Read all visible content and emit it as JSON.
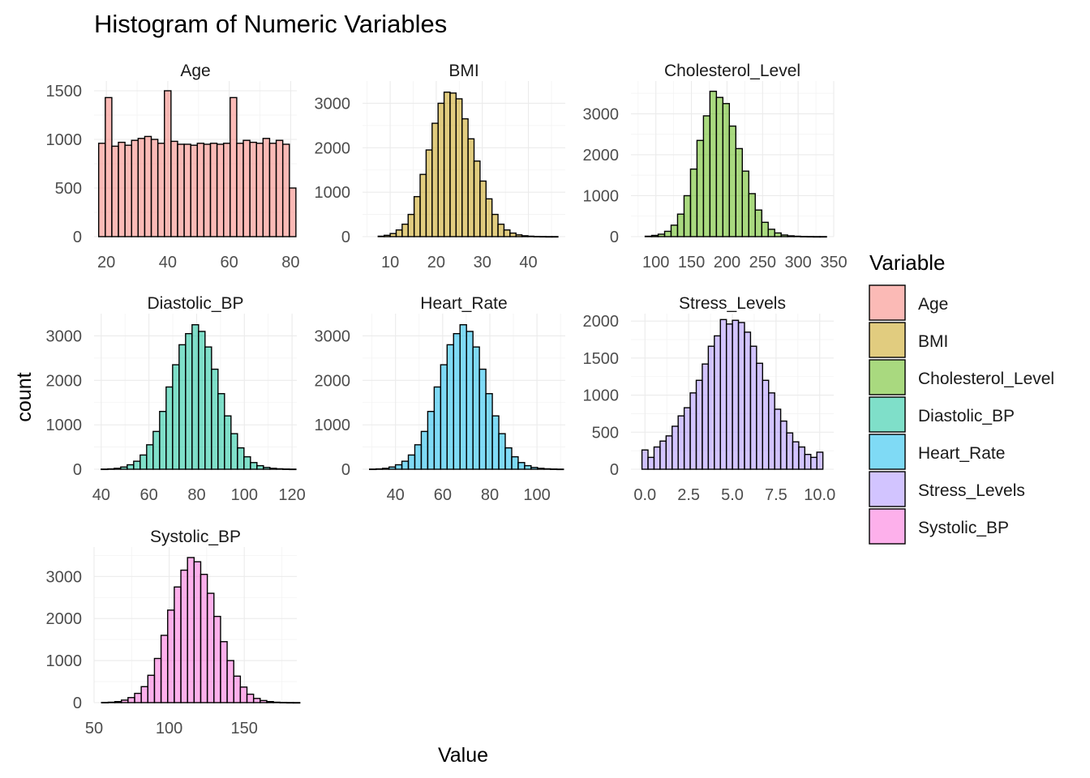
{
  "chart_data": {
    "type": "bar",
    "title": "Histogram of Numeric Variables",
    "xlabel": "Value",
    "ylabel": "count",
    "legend": {
      "title": "Variable",
      "placement": "right",
      "items": [
        {
          "name": "Age",
          "color": "#F8766D"
        },
        {
          "name": "BMI",
          "color": "#C49A00"
        },
        {
          "name": "Cholesterol_Level",
          "color": "#53B400"
        },
        {
          "name": "Diastolic_BP",
          "color": "#00C094"
        },
        {
          "name": "Heart_Rate",
          "color": "#00B6EB"
        },
        {
          "name": "Stress_Levels",
          "color": "#A58AFF"
        },
        {
          "name": "Systolic_BP",
          "color": "#FB61D7"
        }
      ]
    },
    "grid": true,
    "facets": [
      {
        "name": "Age",
        "xlim": [
          16,
          82
        ],
        "ylim": [
          0,
          1600
        ],
        "xticks": [
          20,
          40,
          60,
          80
        ],
        "yticks": [
          0,
          500,
          1000,
          1500
        ],
        "bin_start": 17.5,
        "bin_width": 2.14,
        "counts": [
          960,
          1430,
          930,
          970,
          940,
          990,
          1010,
          1030,
          1000,
          960,
          1500,
          980,
          950,
          950,
          940,
          960,
          950,
          960,
          950,
          960,
          1430,
          960,
          990,
          970,
          960,
          1010,
          960,
          990,
          950,
          500
        ]
      },
      {
        "name": "BMI",
        "xlim": [
          4,
          48
        ],
        "ylim": [
          0,
          3500
        ],
        "xticks": [
          10,
          20,
          30,
          40
        ],
        "yticks": [
          0,
          1000,
          2000,
          3000
        ],
        "bin_start": 7.4,
        "bin_width": 1.3,
        "counts": [
          10,
          30,
          70,
          150,
          280,
          500,
          900,
          1400,
          1950,
          2550,
          3000,
          3250,
          3230,
          3100,
          2650,
          2200,
          1700,
          1250,
          850,
          500,
          280,
          150,
          80,
          40,
          20,
          10,
          5,
          3,
          1,
          1
        ]
      },
      {
        "name": "Cholesterol_Level",
        "xlim": [
          65,
          350
        ],
        "ylim": [
          0,
          3800
        ],
        "xticks": [
          100,
          150,
          200,
          250,
          300,
          350
        ],
        "yticks": [
          0,
          1000,
          2000,
          3000
        ],
        "bin_start": 85,
        "bin_width": 9.1,
        "counts": [
          10,
          30,
          60,
          130,
          280,
          550,
          1000,
          1650,
          2350,
          2950,
          3550,
          3400,
          3250,
          2700,
          2150,
          1600,
          1050,
          650,
          350,
          180,
          90,
          40,
          20,
          10,
          5,
          3,
          1,
          1
        ]
      },
      {
        "name": "Diastolic_BP",
        "xlim": [
          37,
          122
        ],
        "ylim": [
          0,
          3500
        ],
        "xticks": [
          40,
          60,
          80,
          100,
          120
        ],
        "yticks": [
          0,
          1000,
          2000,
          3000
        ],
        "bin_start": 40,
        "bin_width": 2.72,
        "counts": [
          3,
          8,
          20,
          50,
          100,
          180,
          320,
          550,
          850,
          1300,
          1850,
          2350,
          2800,
          3050,
          3250,
          3100,
          2750,
          2250,
          1700,
          1200,
          800,
          480,
          280,
          150,
          80,
          40,
          20,
          10,
          5,
          2
        ]
      },
      {
        "name": "Heart_Rate",
        "xlim": [
          26,
          112
        ],
        "ylim": [
          0,
          3500
        ],
        "xticks": [
          40,
          60,
          80,
          100
        ],
        "yticks": [
          0,
          1000,
          2000,
          3000
        ],
        "bin_start": 29,
        "bin_width": 2.74,
        "counts": [
          3,
          8,
          20,
          50,
          100,
          180,
          320,
          550,
          850,
          1300,
          1850,
          2350,
          2800,
          3050,
          3250,
          3100,
          2750,
          2250,
          1700,
          1200,
          800,
          480,
          280,
          150,
          80,
          40,
          20,
          10,
          5,
          2
        ]
      },
      {
        "name": "Stress_Levels",
        "xlim": [
          -0.8,
          10.8
        ],
        "ylim": [
          0,
          2100
        ],
        "xticks": [
          0.0,
          2.5,
          5.0,
          7.5,
          10.0
        ],
        "yticks": [
          0,
          500,
          1000,
          1500,
          2000
        ],
        "tick_labels": [
          "0.0",
          "2.5",
          "5.0",
          "7.5",
          "10.0"
        ],
        "bin_start": -0.17,
        "bin_width": 0.345,
        "counts": [
          260,
          160,
          300,
          380,
          450,
          580,
          720,
          830,
          1030,
          1200,
          1420,
          1660,
          1800,
          2020,
          1960,
          2010,
          1980,
          1850,
          1660,
          1430,
          1200,
          1030,
          810,
          650,
          490,
          370,
          300,
          200,
          160,
          230
        ]
      },
      {
        "name": "Systolic_BP",
        "xlim": [
          50,
          185
        ],
        "ylim": [
          0,
          3700
        ],
        "xticks": [
          50,
          100,
          150
        ],
        "yticks": [
          0,
          1000,
          2000,
          3000
        ],
        "bin_start": 55,
        "bin_width": 4.4,
        "counts": [
          5,
          10,
          25,
          60,
          120,
          220,
          380,
          650,
          1050,
          1600,
          2200,
          2750,
          3150,
          3450,
          3350,
          3050,
          2600,
          2050,
          1450,
          1000,
          630,
          370,
          200,
          100,
          50,
          25,
          10,
          5,
          2,
          1
        ]
      }
    ]
  }
}
